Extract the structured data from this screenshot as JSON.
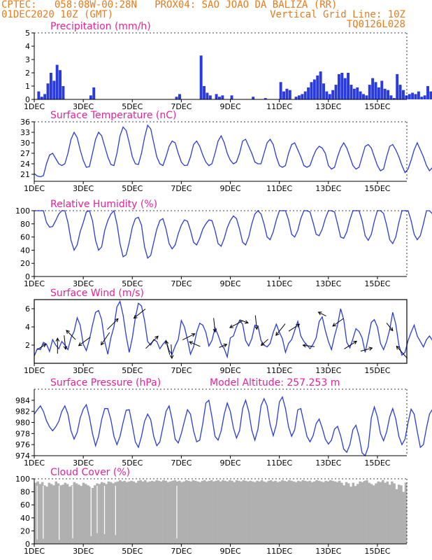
{
  "header": {
    "left1": "CPTEC:",
    "coords": "058:08W-00:28N",
    "station": "PROX04: SAO JOAO DA BALIZA (RR)",
    "date": "01DEC2020 10Z (GMT)",
    "grid_note": "Vertical Grid Line: 10Z",
    "model": "TQ0126L028"
  },
  "colors": {
    "header": "#e87a1a",
    "title": "#e8209a",
    "line": "#2a3bdc",
    "cloud": "#b0b0b0"
  },
  "x_ticks": [
    "1DEC",
    "3DEC",
    "5DEC",
    "7DEC",
    "9DEC",
    "11DEC",
    "13DEC",
    "15DEC"
  ],
  "chart_data": [
    {
      "id": "precip",
      "type": "bar",
      "title": "Precipitation (mm/h)",
      "ylim": [
        0,
        5
      ],
      "yticks": [
        0,
        1,
        2,
        3,
        4,
        5
      ],
      "x": {
        "start_day": 1,
        "end_day": 16.2,
        "step_h": 3
      },
      "values": [
        0,
        0.6,
        0.2,
        0.4,
        1.2,
        2.0,
        1.4,
        2.6,
        2.2,
        1.0,
        0,
        0,
        0,
        0,
        0,
        0,
        0,
        0,
        0.3,
        0.9,
        0,
        0,
        0,
        0,
        0,
        0,
        0,
        0,
        0,
        0,
        0,
        0,
        0,
        0,
        0,
        0,
        0,
        0,
        0,
        0,
        0,
        0,
        0,
        0,
        0,
        0,
        0.2,
        0.4,
        0,
        0,
        0,
        0,
        0,
        0,
        3.3,
        1.0,
        0.5,
        0.3,
        0,
        0.4,
        0.2,
        0.3,
        0,
        0,
        0.3,
        0,
        0,
        0,
        0,
        0,
        0,
        0.2,
        0,
        0,
        0,
        0.1,
        0,
        0,
        0,
        0,
        1.3,
        0.6,
        0.8,
        0.7,
        0,
        0.2,
        0.3,
        0.4,
        0.6,
        0.9,
        1.3,
        1.5,
        1.8,
        2.1,
        1.2,
        0.6,
        0.4,
        0.7,
        1.1,
        1.9,
        2.0,
        1.6,
        2.0,
        1.1,
        0.8,
        0.9,
        0.6,
        0.4,
        0.3,
        1.1,
        1.6,
        1.3,
        0.9,
        1.4,
        0.8,
        0.7,
        0.3,
        0.1,
        1.9,
        1.1,
        0.7,
        0.3,
        0.4,
        0.5,
        0.4,
        0.6,
        0.2,
        0.3,
        1.0,
        0.6,
        0.3,
        0.8,
        1.2,
        1.5,
        1.4,
        0.7
      ]
    },
    {
      "id": "temp",
      "type": "line",
      "title": "Surface Temperature (nC)",
      "ylim": [
        19,
        36
      ],
      "yticks": [
        21,
        24,
        27,
        30,
        33,
        36
      ],
      "x": {
        "start_day": 1,
        "end_day": 16.2,
        "step_h": 3
      },
      "values": [
        21.2,
        20.5,
        20.3,
        20.6,
        24,
        26.5,
        27,
        25.5,
        24,
        23.5,
        24,
        27,
        31,
        33,
        31.5,
        28,
        25,
        23,
        23.2,
        27,
        31,
        33,
        32,
        29,
        26,
        23.8,
        23.5,
        27,
        32,
        34.5,
        33.5,
        30,
        26,
        24,
        23.8,
        27,
        31.5,
        35,
        34,
        30,
        26,
        24,
        23.5,
        26,
        29,
        30.5,
        30,
        27,
        24.5,
        23.5,
        23.6,
        26,
        29.5,
        30.5,
        29,
        26.5,
        24.5,
        23.5,
        24,
        27,
        30.5,
        32,
        30,
        27,
        25,
        24,
        24.5,
        27,
        30.5,
        31,
        29,
        27,
        24.5,
        24,
        24,
        27,
        30,
        31,
        29.5,
        26,
        23.5,
        23,
        23.5,
        27,
        29.5,
        30,
        28,
        26,
        23.5,
        23,
        23.5,
        26,
        28,
        29,
        28.5,
        27,
        23.5,
        22.5,
        23,
        26,
        28.5,
        30,
        28.5,
        26,
        23.5,
        22.5,
        23,
        26,
        29,
        29.5,
        28.5,
        26,
        23.5,
        22,
        22.5,
        26,
        29,
        29.5,
        28,
        26,
        23.5,
        21.5,
        22.5,
        25,
        28,
        30,
        28,
        26,
        23.5,
        22,
        23,
        26,
        28.5,
        29,
        28
      ]
    },
    {
      "id": "rh",
      "type": "line",
      "title": "Relative Humidity (%)",
      "ylim": [
        0,
        100
      ],
      "yticks": [
        0,
        20,
        40,
        60,
        80,
        100
      ],
      "x": {
        "start_day": 1,
        "end_day": 16.2,
        "step_h": 3
      },
      "values": [
        100,
        100,
        100,
        100,
        82,
        75,
        76,
        85,
        95,
        100,
        100,
        82,
        55,
        40,
        48,
        68,
        82,
        98,
        100,
        85,
        55,
        40,
        45,
        70,
        85,
        95,
        100,
        80,
        50,
        30,
        33,
        52,
        75,
        88,
        90,
        78,
        45,
        28,
        32,
        52,
        72,
        85,
        88,
        72,
        50,
        42,
        48,
        65,
        78,
        86,
        84,
        70,
        52,
        48,
        58,
        72,
        80,
        86,
        85,
        70,
        50,
        46,
        58,
        74,
        85,
        92,
        88,
        72,
        52,
        48,
        60,
        80,
        95,
        100,
        95,
        80,
        60,
        56,
        68,
        86,
        100,
        100,
        100,
        86,
        64,
        60,
        70,
        88,
        100,
        100,
        98,
        82,
        64,
        62,
        72,
        88,
        100,
        100,
        98,
        80,
        60,
        58,
        68,
        86,
        100,
        100,
        100,
        85,
        62,
        55,
        64,
        84,
        100,
        100,
        96,
        78,
        56,
        50,
        60,
        82,
        100,
        100,
        100,
        85,
        64,
        56,
        62,
        80,
        100,
        100,
        95,
        72,
        66
      ]
    },
    {
      "id": "wind",
      "type": "line",
      "title": "Surface Wind (m/s)",
      "ylim": [
        0,
        7
      ],
      "yticks": [
        2,
        4,
        6
      ],
      "x": {
        "start_day": 1,
        "end_day": 16.2,
        "step_h": 3
      },
      "values": [
        0.8,
        1.6,
        1.5,
        2.3,
        2.1,
        1.3,
        2.6,
        2.0,
        1.6,
        2.4,
        2.0,
        1.5,
        2.8,
        3.5,
        5.0,
        4.2,
        2.1,
        1.4,
        2.6,
        4.2,
        5.6,
        5.8,
        4.8,
        2.4,
        1.0,
        2.8,
        4.0,
        6.2,
        6.8,
        5.3,
        3.0,
        1.2,
        2.8,
        5.0,
        6.6,
        6.3,
        4.7,
        2.4,
        2.0,
        2.6,
        2.4,
        1.6,
        2.1,
        2.5,
        1.4,
        1.0,
        1.9,
        2.6,
        4.7,
        4.0,
        2.6,
        1.0,
        1.8,
        3.4,
        4.4,
        4.2,
        3.4,
        1.9,
        2.5,
        3.9,
        3.1,
        2.1,
        1.6,
        0.7,
        2.8,
        3.0,
        4.0,
        4.7,
        4.3,
        2.5,
        1.9,
        2.7,
        4.2,
        4.1,
        2.5,
        2.0,
        1.8,
        2.2,
        3.4,
        4.3,
        3.4,
        2.7,
        1.2,
        2.2,
        2.6,
        3.6,
        4.6,
        3.0,
        2.4,
        2.0,
        1.6,
        2.1,
        2.8,
        4.6,
        5.1,
        3.6,
        2.4,
        1.5,
        3.0,
        4.2,
        6.0,
        4.8,
        2.3,
        1.7,
        2.7,
        3.8,
        3.5,
        2.8,
        1.2,
        2.8,
        4.5,
        4.8,
        4.0,
        2.2,
        1.5,
        2.4,
        3.7,
        5.6,
        4.3,
        2.0,
        0.9,
        1.2,
        2.5,
        3.4,
        4.2,
        3.0,
        2.4,
        1.8,
        2.6,
        3.0,
        2.5,
        3.2,
        4.0,
        4.0
      ],
      "arrows": [
        {
          "day": 1.3,
          "dx": 0.55,
          "dy": 0.35
        },
        {
          "day": 1.95,
          "dx": 0,
          "dy": 1
        },
        {
          "day": 2.5,
          "dx": -0.6,
          "dy": 0.6
        },
        {
          "day": 2.25,
          "dx": 0.1,
          "dy": -0.9
        },
        {
          "day": 3.05,
          "dx": -0.75,
          "dy": -0.55
        },
        {
          "day": 3.9,
          "dx": -0.55,
          "dy": -0.8
        },
        {
          "day": 4.2,
          "dx": 0.7,
          "dy": 0.7
        },
        {
          "day": 5.3,
          "dx": -0.75,
          "dy": -0.6
        },
        {
          "day": 5.8,
          "dx": 0.8,
          "dy": 0.8
        },
        {
          "day": 6.45,
          "dx": -0.25,
          "dy": 0.9
        },
        {
          "day": 6.6,
          "dx": 0.05,
          "dy": -0.9
        },
        {
          "day": 7.3,
          "dx": 0.8,
          "dy": 0.4
        },
        {
          "day": 7.55,
          "dx": -0.7,
          "dy": 0.3
        },
        {
          "day": 8.35,
          "dx": 0.1,
          "dy": -0.9
        },
        {
          "day": 8.7,
          "dx": 0.5,
          "dy": 0.2
        },
        {
          "day": 9.25,
          "dx": -0.85,
          "dy": -0.45
        },
        {
          "day": 9.55,
          "dx": 0.55,
          "dy": -0.2
        },
        {
          "day": 10.05,
          "dx": 0.1,
          "dy": -0.9
        },
        {
          "day": 10.4,
          "dx": -0.45,
          "dy": -0.4
        },
        {
          "day": 11.05,
          "dx": -0.6,
          "dy": -0.75
        },
        {
          "day": 11.6,
          "dx": 0.7,
          "dy": 0.45
        },
        {
          "day": 12.2,
          "dx": -0.75,
          "dy": 0.1
        },
        {
          "day": 12.75,
          "dx": -0.5,
          "dy": 0.25
        },
        {
          "day": 13.4,
          "dx": -0.7,
          "dy": -0.5
        },
        {
          "day": 13.9,
          "dx": 0.8,
          "dy": 0.5
        },
        {
          "day": 14.55,
          "dx": 0.75,
          "dy": 0.2
        },
        {
          "day": 15.5,
          "dx": 0.4,
          "dy": -0.5
        },
        {
          "day": 16.0,
          "dx": -0.7,
          "dy": 0.8
        }
      ]
    },
    {
      "id": "pres",
      "type": "line",
      "title": "Surface Pressure (hPa)",
      "subtitle": "Model Altitude: 257.253 m",
      "ylim": [
        974,
        986
      ],
      "yticks": [
        974,
        976,
        978,
        980,
        982,
        984
      ],
      "x": {
        "start_day": 1,
        "end_day": 16.2,
        "step_h": 3
      },
      "values": [
        981.5,
        982.3,
        983,
        982,
        980.3,
        979.2,
        978.5,
        979.2,
        980.2,
        982,
        983,
        981.5,
        978.5,
        977,
        978.2,
        980.8,
        982.4,
        983.2,
        981,
        978,
        975.8,
        977.5,
        980.5,
        982.5,
        982.5,
        980.5,
        977.5,
        976,
        977.5,
        980,
        982.2,
        982.3,
        979.5,
        976.5,
        975.5,
        977.5,
        980.2,
        981.5,
        980.5,
        977.5,
        975.8,
        976.5,
        979.2,
        982,
        983,
        980.5,
        977,
        976.3,
        978,
        980.2,
        982.3,
        981.5,
        978.5,
        976.5,
        976.8,
        979.8,
        983.5,
        984,
        981,
        977.5,
        976.8,
        978.5,
        981.5,
        983.5,
        982,
        979,
        977.2,
        978.5,
        982.5,
        984,
        982,
        978.6,
        976.8,
        978.8,
        983,
        984.3,
        983,
        979.6,
        977.6,
        979.6,
        983.7,
        984.6,
        982.5,
        979.2,
        977.5,
        978.7,
        982.3,
        982.5,
        980,
        977.5,
        976.5,
        977.6,
        979.8,
        980.6,
        979,
        977,
        976.1,
        976.8,
        978.8,
        979.3,
        977.6,
        975.2,
        974.6,
        976,
        978.7,
        979.5,
        977.5,
        974.5,
        973.5,
        975.6,
        980.8,
        982.8,
        981,
        978,
        976.7,
        978.3,
        981,
        982.5,
        980.6,
        977.5,
        976,
        977,
        980,
        982.4,
        981.5,
        978.4,
        975.5,
        976,
        979,
        981.5,
        982.4,
        980.5,
        977.5
      ]
    },
    {
      "id": "cloud",
      "type": "bar",
      "title": "Cloud Cover (%)",
      "ylim": [
        0,
        100
      ],
      "yticks": [
        0,
        20,
        40,
        60,
        80,
        100
      ],
      "x": {
        "start_day": 1,
        "end_day": 16.2,
        "step_h": 3
      },
      "values": [
        94,
        96,
        92,
        95,
        90,
        88,
        94,
        92,
        90,
        96,
        93,
        90,
        91,
        94,
        92,
        88,
        90,
        95,
        93,
        91,
        89,
        94,
        92,
        90,
        88,
        86,
        90,
        93,
        92,
        95,
        94,
        92,
        96,
        95,
        93,
        95,
        96,
        98,
        96,
        97,
        95,
        96,
        97,
        96,
        94,
        97,
        98,
        96,
        98,
        95,
        96,
        97,
        96,
        98,
        97,
        96,
        98,
        97,
        95,
        96,
        97,
        98,
        96,
        97,
        95,
        96,
        98,
        97,
        96,
        98,
        97,
        96,
        95,
        97,
        98,
        96,
        97,
        98,
        96,
        97,
        98,
        96,
        98,
        97,
        96,
        98,
        97,
        95,
        98,
        97,
        96,
        98,
        97,
        96,
        97,
        96,
        95,
        97,
        96,
        98,
        96,
        95,
        97,
        98,
        96,
        97,
        95,
        96,
        98,
        97,
        96,
        98,
        97,
        96,
        95,
        97,
        96,
        98,
        97,
        96,
        97,
        95,
        96,
        98,
        97,
        96,
        95,
        97,
        96,
        98,
        97,
        96,
        95,
        97,
        94,
        90,
        95,
        93,
        88,
        94,
        89,
        92,
        96,
        95,
        97,
        98,
        94,
        92,
        90,
        93,
        96,
        95,
        98,
        94,
        96,
        91,
        96,
        93,
        84,
        91,
        90,
        80,
        94
      ]
    }
  ]
}
